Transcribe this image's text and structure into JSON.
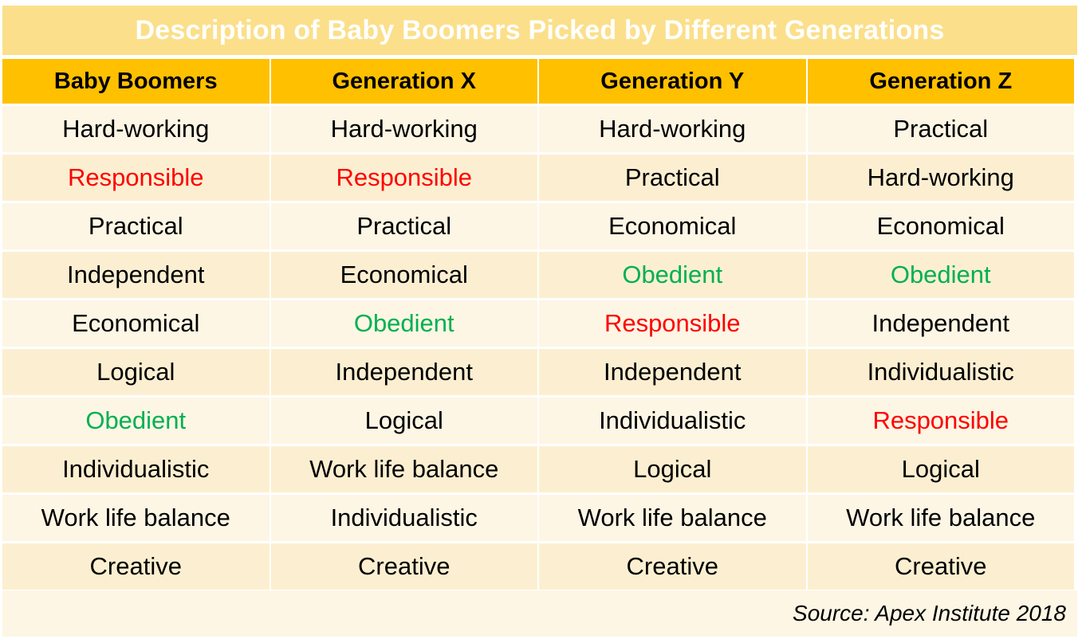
{
  "title": "Description of Baby Boomers Picked by Different Generations",
  "columns": [
    "Baby Boomers",
    "Generation X",
    "Generation Y",
    "Generation Z"
  ],
  "rows": [
    [
      {
        "text": "Hard-working",
        "color": ""
      },
      {
        "text": "Hard-working",
        "color": ""
      },
      {
        "text": "Hard-working",
        "color": ""
      },
      {
        "text": "Practical",
        "color": ""
      }
    ],
    [
      {
        "text": "Responsible",
        "color": "red"
      },
      {
        "text": "Responsible",
        "color": "red"
      },
      {
        "text": "Practical",
        "color": ""
      },
      {
        "text": "Hard-working",
        "color": ""
      }
    ],
    [
      {
        "text": "Practical",
        "color": ""
      },
      {
        "text": "Practical",
        "color": ""
      },
      {
        "text": "Economical",
        "color": ""
      },
      {
        "text": "Economical",
        "color": ""
      }
    ],
    [
      {
        "text": "Independent",
        "color": ""
      },
      {
        "text": "Economical",
        "color": ""
      },
      {
        "text": "Obedient",
        "color": "green"
      },
      {
        "text": "Obedient",
        "color": "green"
      }
    ],
    [
      {
        "text": "Economical",
        "color": ""
      },
      {
        "text": "Obedient",
        "color": "green"
      },
      {
        "text": "Responsible",
        "color": "red"
      },
      {
        "text": "Independent",
        "color": ""
      }
    ],
    [
      {
        "text": "Logical",
        "color": ""
      },
      {
        "text": "Independent",
        "color": ""
      },
      {
        "text": "Independent",
        "color": ""
      },
      {
        "text": "Individualistic",
        "color": ""
      }
    ],
    [
      {
        "text": "Obedient",
        "color": "green"
      },
      {
        "text": "Logical",
        "color": ""
      },
      {
        "text": "Individualistic",
        "color": ""
      },
      {
        "text": "Responsible",
        "color": "red"
      }
    ],
    [
      {
        "text": "Individualistic",
        "color": ""
      },
      {
        "text": "Work life balance",
        "color": ""
      },
      {
        "text": "Logical",
        "color": ""
      },
      {
        "text": "Logical",
        "color": ""
      }
    ],
    [
      {
        "text": "Work life balance",
        "color": ""
      },
      {
        "text": "Individualistic",
        "color": ""
      },
      {
        "text": "Work life balance",
        "color": ""
      },
      {
        "text": "Work life balance",
        "color": ""
      }
    ],
    [
      {
        "text": "Creative",
        "color": ""
      },
      {
        "text": "Creative",
        "color": ""
      },
      {
        "text": "Creative",
        "color": ""
      },
      {
        "text": "Creative",
        "color": ""
      }
    ]
  ],
  "source": "Source: Apex Institute 2018",
  "colors": {
    "title_bg": "#fbdf8a",
    "header_bg": "#ffc000",
    "row_light": "#fdf6e5",
    "row_dark": "#fcefd1",
    "red": "#ff0000",
    "green": "#00b050"
  }
}
